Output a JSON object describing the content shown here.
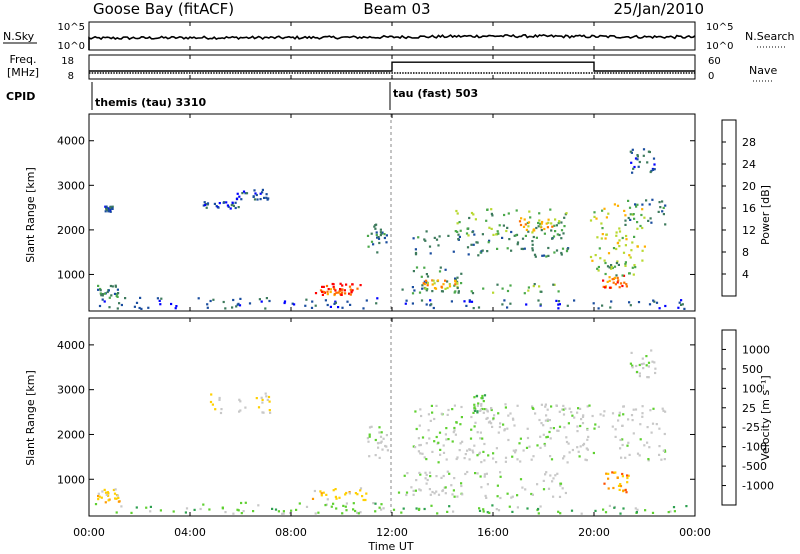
{
  "header": {
    "station": "Goose Bay (fitACF)",
    "beam": "Beam 03",
    "date": "25/Jan/2010"
  },
  "panel_labels": {
    "nsky": "N.Sky",
    "freq_top": "Freq.",
    "freq_units": "[MHz]",
    "cpid": "CPID",
    "nsearch": "N.Search",
    "nave": "Nave"
  },
  "colors": {
    "power_scale": [
      "#0000ff",
      "#1a4d9e",
      "#3d7a5c",
      "#4aa84a",
      "#b8d830",
      "#ffb000",
      "#ff7000",
      "#ff0000"
    ],
    "velocity_scale": [
      "#1a40a8",
      "#2a7a40",
      "#2ea050",
      "#5fd030",
      "#c8c8c8",
      "#c8c8c8",
      "#ffd000",
      "#ff9a00",
      "#ff5000",
      "#ff0000"
    ],
    "ground_scatter": "#c8c8c8"
  },
  "chart_data": [
    {
      "type": "line",
      "name": "noise",
      "ylabel_left": "N.Sky",
      "ylabel_right": "N.Search",
      "yticks_left": [
        "10^5",
        "10^0"
      ],
      "yticks_right": [
        "10^5",
        "10^0"
      ],
      "x": [
        "00:00",
        "04:00",
        "08:00",
        "12:00",
        "16:00",
        "20:00",
        "00:00"
      ],
      "sky_level": [
        2.1,
        2.2,
        2.2,
        2.3,
        2.5,
        2.4,
        2.3
      ]
    },
    {
      "type": "line",
      "name": "frequency",
      "ylabel_left": "Freq. [MHz]",
      "ylabel_right": "Nave",
      "yticks_left": [
        "18",
        "8"
      ],
      "yticks_right": [
        "60",
        "0"
      ],
      "freq_mhz": 10.5,
      "nave_segments": [
        {
          "start": "00:00",
          "end": "12:00",
          "nave": 20
        },
        {
          "start": "12:00",
          "end": "20:00",
          "nave": 42
        },
        {
          "start": "20:00",
          "end": "00:00",
          "nave": 20
        }
      ]
    },
    {
      "type": "table",
      "name": "cpid",
      "label": "CPID",
      "segments": [
        {
          "start": "00:00",
          "label": "themis (tau) 3310"
        },
        {
          "start": "12:00",
          "label": "tau (fast) 503"
        }
      ]
    },
    {
      "type": "heatmap",
      "name": "power",
      "ylabel": "Slant Range [km]",
      "yticks": [
        "1000",
        "2000",
        "3000",
        "4000"
      ],
      "ylim": [
        180,
        4600
      ],
      "xlim_hours": [
        0,
        24
      ],
      "colorbar_label": "Power [dB]",
      "colorbar_ticks": [
        "4",
        "8",
        "12",
        "16",
        "20",
        "24",
        "28"
      ],
      "scatter_regions": [
        {
          "t0": 0.2,
          "t1": 11.8,
          "r0": 250,
          "r1": 500,
          "level": 1
        },
        {
          "t0": 0.3,
          "t1": 1.2,
          "r0": 500,
          "r1": 800,
          "level": 2
        },
        {
          "t0": 0.6,
          "t1": 0.9,
          "r0": 2400,
          "r1": 2550,
          "level": 1
        },
        {
          "t0": 4.5,
          "t1": 6.0,
          "r0": 2500,
          "r1": 2650,
          "level": 1
        },
        {
          "t0": 5.8,
          "t1": 7.2,
          "r0": 2700,
          "r1": 2950,
          "level": 1
        },
        {
          "t0": 8.8,
          "t1": 10.8,
          "r0": 600,
          "r1": 820,
          "level": 7
        },
        {
          "t0": 9.2,
          "t1": 10.4,
          "r0": 560,
          "r1": 700,
          "level": 6
        },
        {
          "t0": 11.0,
          "t1": 11.8,
          "r0": 1500,
          "r1": 2200,
          "level": 2
        },
        {
          "t0": 12.2,
          "t1": 14.8,
          "r0": 600,
          "r1": 1200,
          "level": 2
        },
        {
          "t0": 13.2,
          "t1": 14.6,
          "r0": 700,
          "r1": 900,
          "level": 5
        },
        {
          "t0": 14.4,
          "t1": 18.8,
          "r0": 600,
          "r1": 850,
          "level": 3
        },
        {
          "t0": 12.8,
          "t1": 19.0,
          "r0": 1400,
          "r1": 2000,
          "level": 2
        },
        {
          "t0": 14.5,
          "t1": 19.0,
          "r0": 1900,
          "r1": 2500,
          "level": 3
        },
        {
          "t0": 17.0,
          "t1": 18.6,
          "r0": 2000,
          "r1": 2300,
          "level": 5
        },
        {
          "t0": 19.8,
          "t1": 22.0,
          "r0": 1300,
          "r1": 2600,
          "level": 4
        },
        {
          "t0": 20.3,
          "t1": 21.4,
          "r0": 700,
          "r1": 1000,
          "level": 6
        },
        {
          "t0": 20.0,
          "t1": 21.6,
          "r0": 1000,
          "r1": 1300,
          "level": 3
        },
        {
          "t0": 21.2,
          "t1": 22.8,
          "r0": 2100,
          "r1": 2700,
          "level": 2
        },
        {
          "t0": 21.4,
          "t1": 22.4,
          "r0": 3300,
          "r1": 3900,
          "level": 1
        },
        {
          "t0": 12.0,
          "t1": 23.8,
          "r0": 250,
          "r1": 450,
          "level": 1
        }
      ]
    },
    {
      "type": "heatmap",
      "name": "velocity",
      "ylabel": "Slant Range [km]",
      "yticks": [
        "1000",
        "2000",
        "3000",
        "4000"
      ],
      "ylim": [
        180,
        4600
      ],
      "xlabel": "Time UT",
      "xticks": [
        "00:00",
        "04:00",
        "08:00",
        "12:00",
        "16:00",
        "20:00",
        "00:00"
      ],
      "colorbar_label": "Velocity [m s⁻¹]",
      "colorbar_ticks": [
        "1000",
        "500",
        "100",
        "25",
        "-25",
        "-100",
        "-500",
        "-1000"
      ],
      "scatter_regions": [
        {
          "t0": 0.2,
          "t1": 11.8,
          "r0": 250,
          "r1": 500,
          "level": 3
        },
        {
          "t0": 0.3,
          "t1": 1.2,
          "r0": 500,
          "r1": 800,
          "level": 6
        },
        {
          "t0": 4.5,
          "t1": 7.2,
          "r0": 2500,
          "r1": 2950,
          "level": 5
        },
        {
          "t0": 8.8,
          "t1": 11.0,
          "r0": 560,
          "r1": 820,
          "level": 6
        },
        {
          "t0": 11.0,
          "t1": 11.8,
          "r0": 1500,
          "r1": 2200,
          "level": 4
        },
        {
          "t0": 12.2,
          "t1": 19.0,
          "r0": 600,
          "r1": 1200,
          "level": 4
        },
        {
          "t0": 12.8,
          "t1": 22.8,
          "r0": 1400,
          "r1": 2700,
          "level": 4
        },
        {
          "t0": 15.2,
          "t1": 15.8,
          "r0": 2500,
          "r1": 2900,
          "level": 3
        },
        {
          "t0": 20.3,
          "t1": 21.4,
          "r0": 700,
          "r1": 1200,
          "level": 7
        },
        {
          "t0": 21.4,
          "t1": 22.4,
          "r0": 3300,
          "r1": 3900,
          "level": 4
        },
        {
          "t0": 12.0,
          "t1": 23.8,
          "r0": 250,
          "r1": 450,
          "level": 3
        }
      ]
    }
  ]
}
